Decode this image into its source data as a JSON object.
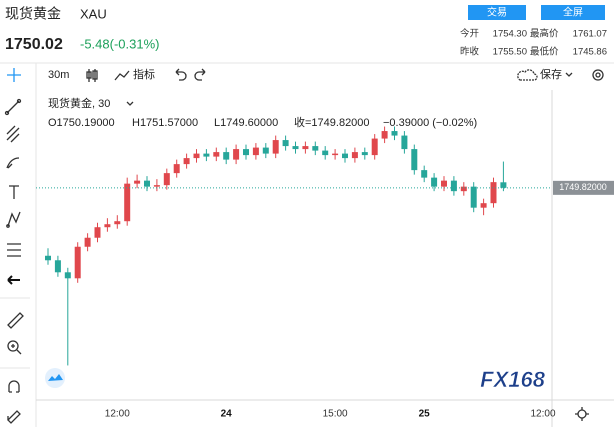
{
  "header": {
    "name": "现货黄金",
    "symbol": "XAU",
    "price": "1750.02",
    "change": "-5.48(-0.31%)",
    "buttons": [
      "交易",
      "全屏"
    ],
    "stats": [
      [
        "今开",
        "1754.30",
        "最高价",
        "1761.07"
      ],
      [
        "昨收",
        "1755.50",
        "最低价",
        "1745.86"
      ]
    ]
  },
  "toolbar": {
    "interval": "30m",
    "indicators": "指标",
    "save": "保存"
  },
  "legend": {
    "title": "现货黄金, 30",
    "open": "O1750.19000",
    "high": "H1751.57000",
    "low": "L1749.60000",
    "close": "收=1749.82000",
    "change": "−0.39000 (−0.02%)"
  },
  "watermark": "FX168",
  "chart_data": {
    "type": "candlestick",
    "categories": [
      null,
      null,
      null,
      null,
      null,
      null,
      null,
      "12:00",
      null,
      null,
      null,
      null,
      null,
      null,
      null,
      null,
      null,
      null,
      "24",
      null,
      null,
      null,
      null,
      null,
      null,
      null,
      null,
      null,
      null,
      "15:00",
      null,
      null,
      null,
      null,
      null,
      null,
      null,
      null,
      "25",
      null,
      null,
      null,
      null,
      null,
      null,
      null,
      null,
      null,
      null,
      null,
      "12:00"
    ],
    "open": [
      1745.3,
      1745.0,
      1744.2,
      1743.8,
      1745.9,
      1746.5,
      1747.2,
      1747.4,
      1747.6,
      1750.1,
      1750.3,
      1749.9,
      1750.0,
      1750.8,
      1751.4,
      1751.8,
      1752.1,
      1751.9,
      1752.2,
      1751.7,
      1752.4,
      1752.0,
      1752.5,
      1752.1,
      1753.0,
      1752.6,
      1752.4,
      1752.6,
      1752.3,
      1752.0,
      1752.1,
      1751.8,
      1752.2,
      1752.0,
      1753.1,
      1753.6,
      1753.3,
      1752.4,
      1751.0,
      1750.5,
      1749.9,
      1750.3,
      1749.6,
      1749.9,
      1748.5,
      1748.8,
      1750.19,
      null,
      null,
      null,
      null
    ],
    "high": [
      1745.8,
      1745.3,
      1744.5,
      1746.2,
      1746.8,
      1747.5,
      1747.8,
      1748.0,
      1750.5,
      1750.7,
      1750.6,
      1750.4,
      1751.1,
      1751.7,
      1752.1,
      1752.4,
      1752.4,
      1752.5,
      1752.5,
      1752.7,
      1752.7,
      1752.8,
      1752.8,
      1753.3,
      1753.3,
      1752.9,
      1752.9,
      1752.9,
      1752.6,
      1752.4,
      1752.4,
      1752.5,
      1752.5,
      1753.4,
      1753.9,
      1753.9,
      1753.6,
      1752.7,
      1751.3,
      1750.8,
      1750.6,
      1750.6,
      1750.2,
      1750.2,
      1749.1,
      1750.5,
      1751.57,
      null,
      null,
      null,
      null
    ],
    "low": [
      1744.7,
      1743.9,
      1738.0,
      1743.5,
      1745.6,
      1746.2,
      1746.9,
      1747.1,
      1747.3,
      1749.8,
      1749.6,
      1749.6,
      1749.7,
      1750.5,
      1751.1,
      1751.5,
      1751.6,
      1751.6,
      1751.4,
      1751.4,
      1751.7,
      1751.7,
      1751.8,
      1751.8,
      1752.3,
      1752.1,
      1752.1,
      1752.0,
      1751.7,
      1751.7,
      1751.5,
      1751.5,
      1751.7,
      1751.7,
      1752.8,
      1753.0,
      1752.1,
      1750.7,
      1750.2,
      1749.6,
      1749.6,
      1749.3,
      1749.3,
      1748.2,
      1748.0,
      1748.5,
      1749.6,
      null,
      null,
      null,
      null
    ],
    "close": [
      1745.0,
      1744.2,
      1743.8,
      1745.9,
      1746.5,
      1747.2,
      1747.4,
      1747.6,
      1750.1,
      1750.3,
      1749.9,
      1750.0,
      1750.8,
      1751.4,
      1751.8,
      1752.1,
      1751.9,
      1752.2,
      1751.7,
      1752.4,
      1752.0,
      1752.5,
      1752.1,
      1753.0,
      1752.6,
      1752.4,
      1752.6,
      1752.3,
      1752.0,
      1752.1,
      1751.8,
      1752.2,
      1752.0,
      1753.1,
      1753.6,
      1753.3,
      1752.4,
      1751.0,
      1750.5,
      1749.9,
      1750.3,
      1749.6,
      1749.9,
      1748.5,
      1748.8,
      1750.2,
      1749.82,
      null,
      null,
      null,
      null
    ],
    "up_color": "#e0474c",
    "down_color": "#26a69a",
    "ylim": [
      1735.7,
      1756.0
    ],
    "last_price": {
      "value": 1749.82,
      "label": "1749.82000"
    }
  }
}
